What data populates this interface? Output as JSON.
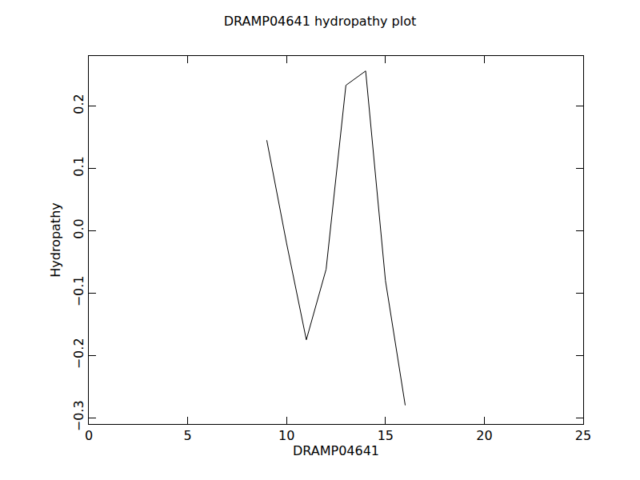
{
  "chart_data": {
    "type": "line",
    "title": "DRAMP04641 hydropathy plot",
    "x_label": "DRAMP04641",
    "y_label": "Hydropathy",
    "x": [
      9,
      10,
      11,
      12,
      13,
      14,
      15,
      16
    ],
    "values": [
      0.145,
      -0.02,
      -0.175,
      -0.062,
      0.233,
      0.256,
      -0.08,
      -0.28
    ],
    "color": "#000000",
    "xlim": [
      0,
      25
    ],
    "xticks": [
      0,
      5,
      10,
      15,
      20,
      25
    ],
    "ylim": [
      -0.31,
      0.28
    ],
    "yticks": [
      {
        "value": -0.3,
        "label": "−0.3"
      },
      {
        "value": -0.2,
        "label": "−0.2"
      },
      {
        "value": -0.1,
        "label": "−0.1"
      },
      {
        "value": 0,
        "label": "0.0"
      },
      0.1,
      0.2
    ],
    "grid": false
  }
}
